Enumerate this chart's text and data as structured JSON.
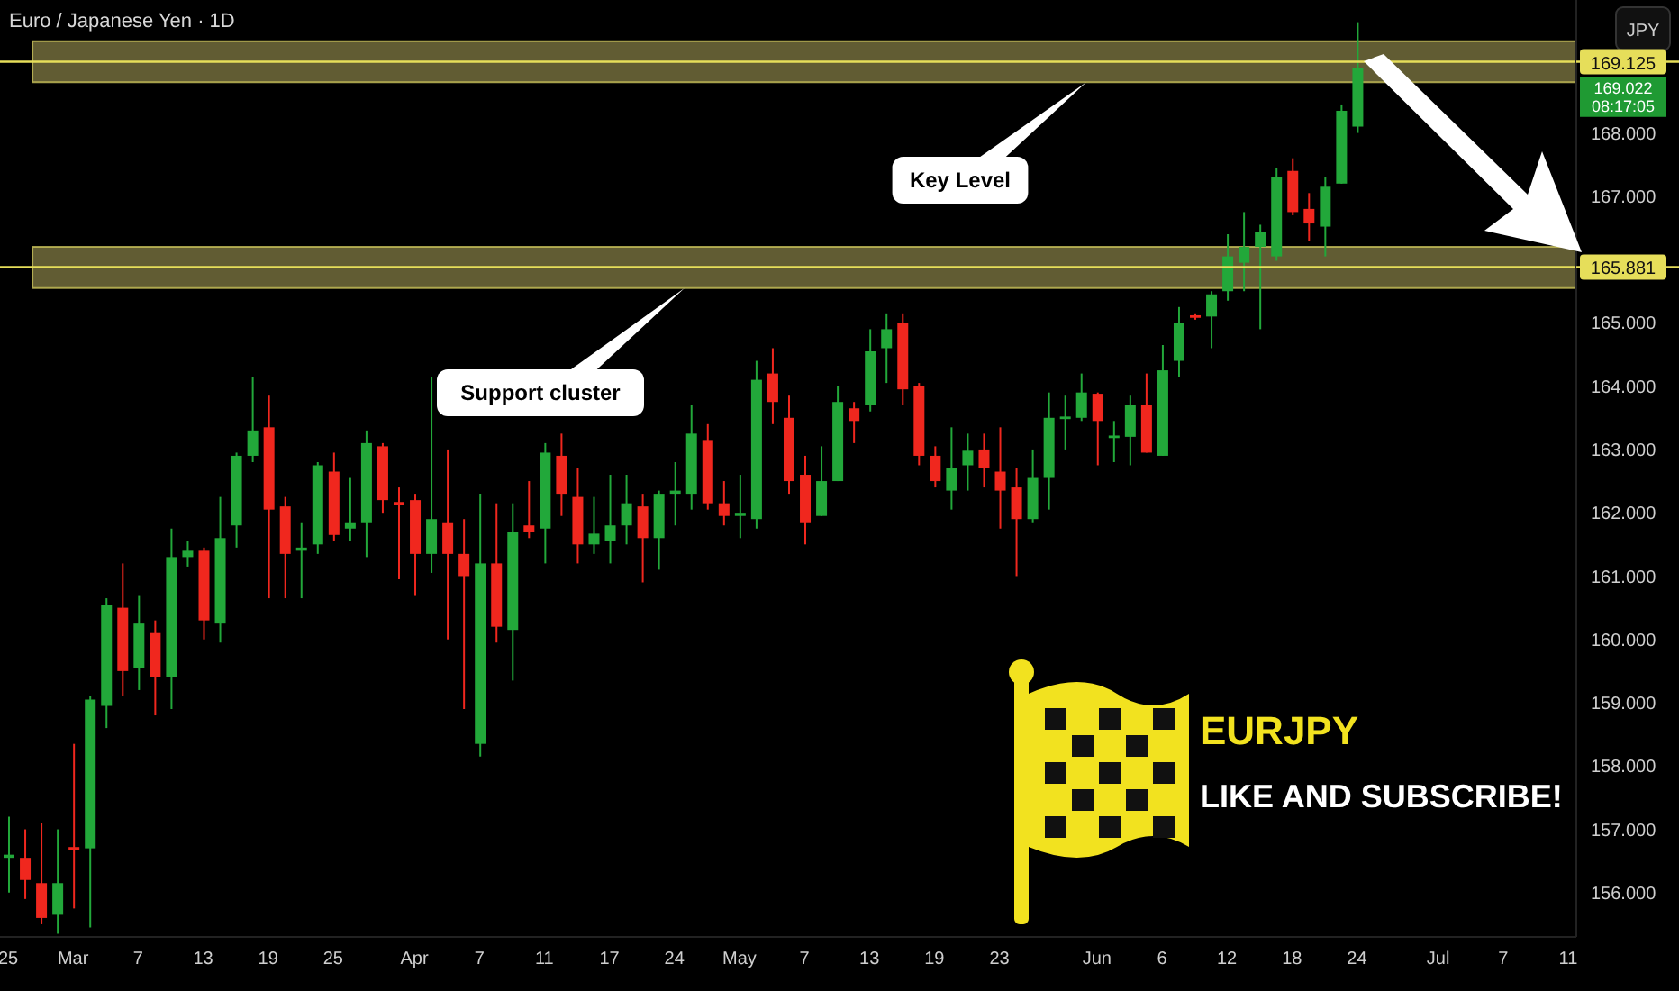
{
  "chart_data": {
    "type": "candlestick",
    "title": "Euro / Japanese Yen · 1D",
    "ylabel": "JPY",
    "categories": [
      "25",
      null,
      null,
      null,
      "Mar",
      null,
      null,
      null,
      "7",
      null,
      null,
      null,
      "13",
      null,
      null,
      null,
      "19",
      null,
      null,
      null,
      "25",
      null,
      null,
      null,
      null,
      "Apr",
      null,
      null,
      null,
      "7",
      null,
      null,
      null,
      "11",
      null,
      null,
      null,
      "17",
      null,
      null,
      null,
      "24",
      null,
      null,
      null,
      "May",
      null,
      null,
      null,
      "7",
      null,
      null,
      null,
      "13",
      null,
      null,
      null,
      "19",
      null,
      null,
      null,
      "23",
      null,
      null,
      null,
      null,
      null,
      "Jun",
      null,
      null,
      null,
      "6",
      null,
      null,
      null,
      "12",
      null,
      null,
      null,
      "18",
      null,
      null,
      null,
      "24",
      null,
      null,
      null,
      null,
      "Jul",
      null,
      null,
      null,
      "7",
      null,
      null,
      null,
      "11"
    ],
    "ohlc": [
      [
        156.55,
        157.2,
        156.0,
        156.6
      ],
      [
        156.55,
        157.0,
        155.9,
        156.2
      ],
      [
        156.15,
        157.1,
        155.5,
        155.6
      ],
      [
        155.65,
        157.0,
        155.35,
        156.15
      ],
      [
        156.72,
        158.35,
        155.75,
        156.68
      ],
      [
        156.7,
        159.1,
        155.45,
        159.05
      ],
      [
        158.95,
        160.65,
        158.6,
        160.55
      ],
      [
        160.5,
        161.2,
        159.1,
        159.5
      ],
      [
        159.55,
        160.7,
        159.2,
        160.25
      ],
      [
        160.1,
        160.3,
        158.8,
        159.4
      ],
      [
        159.4,
        161.75,
        158.9,
        161.3
      ],
      [
        161.3,
        161.55,
        161.15,
        161.4
      ],
      [
        161.4,
        161.45,
        160.0,
        160.3
      ],
      [
        160.25,
        162.25,
        159.95,
        161.6
      ],
      [
        161.8,
        162.95,
        161.45,
        162.9
      ],
      [
        162.9,
        164.15,
        162.8,
        163.3
      ],
      [
        163.35,
        163.85,
        160.65,
        162.05
      ],
      [
        162.1,
        162.25,
        160.65,
        161.35
      ],
      [
        161.4,
        161.85,
        160.65,
        161.45
      ],
      [
        161.5,
        162.8,
        161.35,
        162.75
      ],
      [
        162.65,
        162.95,
        161.55,
        161.65
      ],
      [
        161.75,
        162.55,
        161.55,
        161.85
      ],
      [
        161.85,
        163.3,
        161.3,
        163.1
      ],
      [
        163.05,
        163.1,
        162.0,
        162.2
      ],
      [
        162.17,
        162.4,
        160.95,
        162.13
      ],
      [
        162.2,
        162.3,
        160.7,
        161.35
      ],
      [
        161.35,
        164.15,
        161.05,
        161.9
      ],
      [
        161.85,
        163.0,
        160.0,
        161.35
      ],
      [
        161.35,
        161.9,
        158.9,
        161.0
      ],
      [
        158.35,
        162.3,
        158.15,
        161.2
      ],
      [
        161.2,
        162.15,
        159.95,
        160.2
      ],
      [
        160.15,
        162.15,
        159.35,
        161.7
      ],
      [
        161.8,
        162.5,
        161.6,
        161.7
      ],
      [
        161.75,
        163.1,
        161.2,
        162.95
      ],
      [
        162.9,
        163.25,
        161.95,
        162.3
      ],
      [
        162.25,
        162.7,
        161.2,
        161.5
      ],
      [
        161.5,
        162.25,
        161.35,
        161.67
      ],
      [
        161.55,
        162.6,
        161.2,
        161.8
      ],
      [
        161.8,
        162.6,
        161.5,
        162.15
      ],
      [
        162.1,
        162.3,
        160.9,
        161.6
      ],
      [
        161.6,
        162.35,
        161.1,
        162.3
      ],
      [
        162.3,
        162.8,
        161.8,
        162.35
      ],
      [
        162.3,
        163.7,
        162.05,
        163.25
      ],
      [
        163.15,
        163.4,
        162.05,
        162.15
      ],
      [
        162.15,
        162.5,
        161.8,
        161.95
      ],
      [
        161.95,
        162.6,
        161.6,
        162.0
      ],
      [
        161.9,
        164.4,
        161.75,
        164.1
      ],
      [
        164.2,
        164.6,
        163.4,
        163.75
      ],
      [
        163.5,
        163.85,
        162.3,
        162.5
      ],
      [
        162.6,
        162.9,
        161.5,
        161.85
      ],
      [
        161.95,
        163.05,
        161.95,
        162.5
      ],
      [
        162.5,
        164.0,
        162.5,
        163.75
      ],
      [
        163.65,
        163.75,
        163.1,
        163.45
      ],
      [
        163.7,
        164.9,
        163.6,
        164.55
      ],
      [
        164.6,
        165.15,
        164.05,
        164.9
      ],
      [
        165.0,
        165.15,
        163.7,
        163.95
      ],
      [
        164.0,
        164.05,
        162.75,
        162.9
      ],
      [
        162.9,
        163.05,
        162.4,
        162.5
      ],
      [
        162.35,
        163.35,
        162.05,
        162.7
      ],
      [
        162.75,
        163.25,
        162.35,
        162.98
      ],
      [
        163.0,
        163.25,
        162.4,
        162.7
      ],
      [
        162.65,
        163.35,
        161.75,
        162.35
      ],
      [
        162.4,
        162.7,
        161.0,
        161.9
      ],
      [
        161.9,
        163.0,
        161.85,
        162.55
      ],
      [
        162.55,
        163.9,
        162.05,
        163.5
      ],
      [
        163.48,
        163.85,
        163.0,
        163.52
      ],
      [
        163.5,
        164.2,
        163.45,
        163.9
      ],
      [
        163.88,
        163.9,
        162.75,
        163.45
      ],
      [
        163.18,
        163.45,
        162.8,
        163.22
      ],
      [
        163.2,
        163.85,
        162.75,
        163.7
      ],
      [
        163.7,
        164.2,
        162.95,
        162.95
      ],
      [
        162.9,
        164.65,
        162.9,
        164.25
      ],
      [
        164.4,
        165.25,
        164.15,
        165.0
      ],
      [
        165.12,
        165.15,
        165.05,
        165.08
      ],
      [
        165.1,
        165.5,
        164.6,
        165.45
      ],
      [
        165.5,
        166.4,
        165.35,
        166.05
      ],
      [
        165.95,
        166.75,
        165.5,
        166.2
      ],
      [
        166.2,
        166.55,
        164.9,
        166.43
      ],
      [
        166.05,
        167.45,
        165.98,
        167.3
      ],
      [
        167.4,
        167.6,
        166.7,
        166.75
      ],
      [
        166.8,
        167.05,
        166.3,
        166.57
      ],
      [
        166.52,
        167.3,
        166.05,
        167.15
      ],
      [
        167.2,
        168.45,
        167.2,
        168.35
      ],
      [
        168.1,
        169.75,
        168.0,
        169.022
      ],
      null,
      null,
      null,
      null,
      null,
      null,
      null,
      null,
      null,
      null,
      null,
      null,
      null
    ],
    "colors": [
      "#22a83a",
      "#f0271e",
      "#f0271e",
      "#22a83a",
      "#f0271e",
      "#22a83a",
      "#22a83a",
      "#f0271e",
      "#22a83a",
      "#f0271e",
      "#22a83a",
      "#22a83a",
      "#f0271e",
      "#22a83a",
      "#22a83a",
      "#22a83a",
      "#f0271e",
      "#f0271e",
      "#22a83a",
      "#22a83a",
      "#f0271e",
      "#22a83a",
      "#22a83a",
      "#f0271e",
      "#f0271e",
      "#f0271e",
      "#22a83a",
      "#f0271e",
      "#f0271e",
      "#22a83a",
      "#f0271e",
      "#22a83a",
      "#f0271e",
      "#22a83a",
      "#f0271e",
      "#f0271e",
      "#22a83a",
      "#22a83a",
      "#22a83a",
      "#f0271e",
      "#22a83a",
      "#22a83a",
      "#22a83a",
      "#f0271e",
      "#f0271e",
      "#22a83a",
      "#22a83a",
      "#f0271e",
      "#f0271e",
      "#f0271e",
      "#22a83a",
      "#22a83a",
      "#f0271e",
      "#22a83a",
      "#22a83a",
      "#f0271e",
      "#f0271e",
      "#f0271e",
      "#22a83a",
      "#22a83a",
      "#f0271e",
      "#f0271e",
      "#f0271e",
      "#22a83a",
      "#22a83a",
      "#22a83a",
      "#22a83a",
      "#f0271e",
      "#22a83a",
      "#22a83a",
      "#f0271e",
      "#22a83a",
      "#22a83a",
      "#f0271e",
      "#22a83a",
      "#22a83a",
      "#22a83a",
      "#22a83a",
      "#22a83a",
      "#f0271e",
      "#f0271e",
      "#22a83a",
      "#22a83a",
      "#22a83a",
      null,
      null,
      null,
      null,
      null,
      null,
      null,
      null,
      null,
      null,
      null,
      null,
      null
    ],
    "ylim": [
      155.3,
      170.1
    ],
    "yticks": [
      {
        "value": 156,
        "label": "156.000"
      },
      {
        "value": 157,
        "label": "157.000"
      },
      {
        "value": 158,
        "label": "158.000"
      },
      {
        "value": 159,
        "label": "159.000"
      },
      {
        "value": 160,
        "label": "160.000"
      },
      {
        "value": 161,
        "label": "161.000"
      },
      {
        "value": 162,
        "label": "162.000"
      },
      {
        "value": 163,
        "label": "163.000"
      },
      {
        "value": 164,
        "label": "164.000"
      },
      {
        "value": 165,
        "label": "165.000"
      },
      {
        "value": 167,
        "label": "167.000"
      },
      {
        "value": 168,
        "label": "168.000"
      }
    ],
    "bands": [
      {
        "axis": "y",
        "from": 168.8,
        "to": 169.45,
        "color": "#6b6638"
      },
      {
        "axis": "y",
        "from": 165.55,
        "to": 166.2,
        "color": "#6b6638"
      }
    ],
    "ref_lines": [
      {
        "axis": "y",
        "value": 169.125,
        "label": "169.125",
        "color": "#e6de5a"
      },
      {
        "axis": "y",
        "value": 165.881,
        "label": "165.881",
        "color": "#e6de5a"
      }
    ],
    "annotations": [
      "169.022",
      "08:17:05",
      "EURJPY",
      "LIKE AND SUBSCRIBE!",
      "Key Level",
      "Support cluster"
    ]
  }
}
